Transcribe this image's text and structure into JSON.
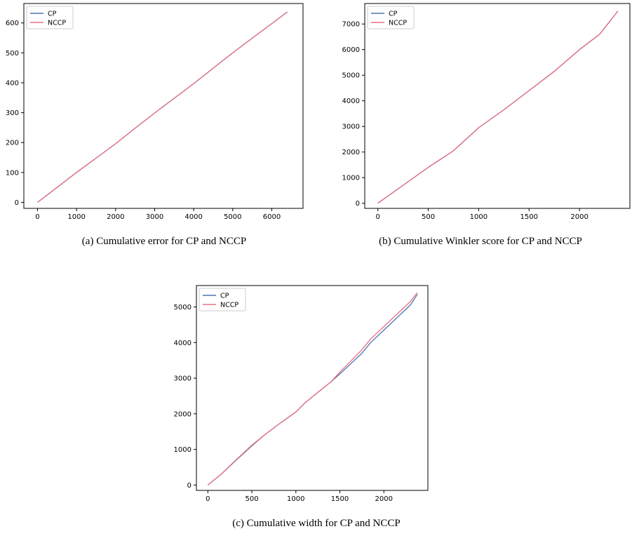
{
  "colors": {
    "CP": "#4c72b0",
    "NCCP": "#e8707e"
  },
  "chart_data": [
    {
      "type": "line",
      "caption": "(a) Cumulative error for CP and NCCP",
      "xlim": [
        -350,
        6800
      ],
      "ylim": [
        -20,
        665
      ],
      "xticks": [
        0,
        1000,
        2000,
        3000,
        4000,
        5000,
        6000
      ],
      "yticks": [
        0,
        100,
        200,
        300,
        400,
        500,
        600
      ],
      "legend": "top-left",
      "series": [
        {
          "name": "CP",
          "x": [
            0,
            500,
            1000,
            1500,
            2000,
            2500,
            3000,
            3500,
            4000,
            4500,
            5000,
            5500,
            6000,
            6400
          ],
          "y": [
            0,
            50,
            100,
            148,
            196,
            248,
            299,
            348,
            397,
            449,
            500,
            549,
            598,
            637
          ]
        },
        {
          "name": "NCCP",
          "x": [
            0,
            500,
            1000,
            1500,
            2000,
            2500,
            3000,
            3500,
            4000,
            4500,
            5000,
            5500,
            6000,
            6400
          ],
          "y": [
            0,
            50,
            100,
            148,
            196,
            248,
            299,
            348,
            397,
            449,
            500,
            549,
            598,
            637
          ]
        }
      ]
    },
    {
      "type": "line",
      "caption": "(b) Cumulative Winkler score for CP and NCCP",
      "xlim": [
        -130,
        2500
      ],
      "ylim": [
        -200,
        7800
      ],
      "xticks": [
        0,
        500,
        1000,
        1500,
        2000
      ],
      "yticks": [
        0,
        1000,
        2000,
        3000,
        4000,
        5000,
        6000,
        7000
      ],
      "legend": "top-left",
      "series": [
        {
          "name": "CP",
          "x": [
            0,
            250,
            500,
            750,
            1000,
            1250,
            1500,
            1750,
            2000,
            2200,
            2380
          ],
          "y": [
            0,
            700,
            1400,
            2050,
            2950,
            3650,
            4400,
            5150,
            6000,
            6600,
            7500
          ]
        },
        {
          "name": "NCCP",
          "x": [
            0,
            250,
            500,
            750,
            1000,
            1250,
            1500,
            1750,
            2000,
            2200,
            2380
          ],
          "y": [
            0,
            700,
            1400,
            2050,
            2950,
            3650,
            4400,
            5150,
            6000,
            6600,
            7500
          ]
        }
      ]
    },
    {
      "type": "line",
      "caption": "(c) Cumulative width for CP and NCCP",
      "xlim": [
        -130,
        2500
      ],
      "ylim": [
        -150,
        5600
      ],
      "xticks": [
        0,
        500,
        1000,
        1500,
        2000
      ],
      "yticks": [
        0,
        1000,
        2000,
        3000,
        4000,
        5000
      ],
      "legend": "top-left",
      "series": [
        {
          "name": "CP",
          "x": [
            0,
            150,
            300,
            500,
            650,
            800,
            1000,
            1100,
            1250,
            1400,
            1500,
            1600,
            1750,
            1850,
            2000,
            2150,
            2300,
            2380
          ],
          "y": [
            0,
            300,
            650,
            1100,
            1420,
            1700,
            2050,
            2300,
            2600,
            2900,
            3120,
            3350,
            3700,
            4000,
            4350,
            4700,
            5050,
            5350
          ]
        },
        {
          "name": "NCCP",
          "x": [
            0,
            150,
            300,
            500,
            650,
            800,
            1000,
            1100,
            1250,
            1400,
            1500,
            1600,
            1750,
            1850,
            2000,
            2150,
            2300,
            2380
          ],
          "y": [
            0,
            300,
            660,
            1120,
            1420,
            1700,
            2050,
            2300,
            2600,
            2900,
            3170,
            3420,
            3800,
            4100,
            4450,
            4800,
            5150,
            5400
          ]
        }
      ]
    }
  ]
}
